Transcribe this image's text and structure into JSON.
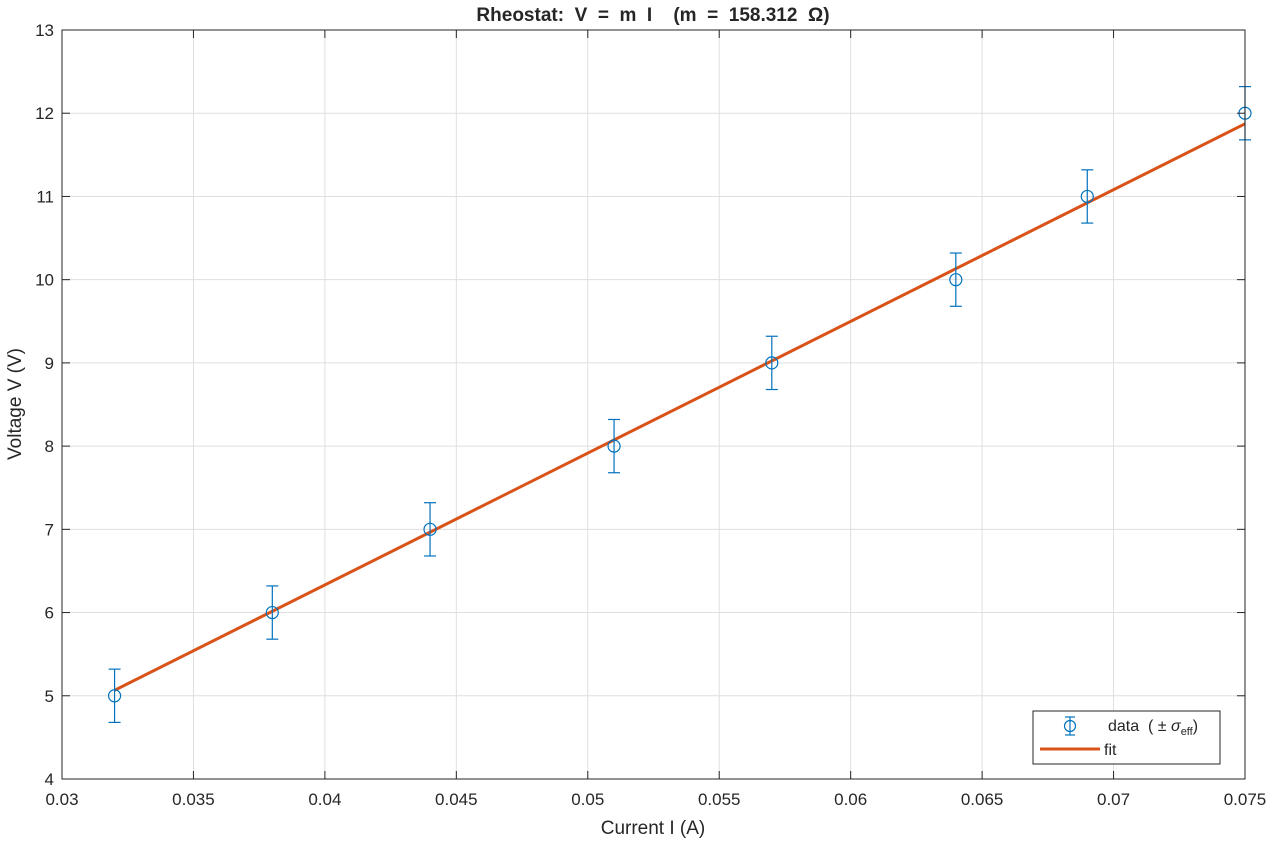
{
  "chart_data": {
    "type": "scatter",
    "title": "Rheostat:  V  =  m  I    (m  =  158.312  Ω)",
    "xlabel": "Current I (A)",
    "ylabel": "Voltage V (V)",
    "xlim": [
      0.03,
      0.075
    ],
    "ylim": [
      4,
      13
    ],
    "xticks": [
      0.03,
      0.035,
      0.04,
      0.045,
      0.05,
      0.055,
      0.06,
      0.065,
      0.07,
      0.075
    ],
    "xtick_labels": [
      "0.03",
      "0.035",
      "0.04",
      "0.045",
      "0.05",
      "0.055",
      "0.06",
      "0.065",
      "0.07",
      "0.075"
    ],
    "yticks": [
      4,
      5,
      6,
      7,
      8,
      9,
      10,
      11,
      12,
      13
    ],
    "ytick_labels": [
      "4",
      "5",
      "6",
      "7",
      "8",
      "9",
      "10",
      "11",
      "12",
      "13"
    ],
    "grid": true,
    "legend_position": "bottom-right",
    "series": [
      {
        "name": "data",
        "kind": "errorbar",
        "color": "#0072BD",
        "x": [
          0.032,
          0.038,
          0.044,
          0.051,
          0.057,
          0.064,
          0.069,
          0.075
        ],
        "y": [
          5,
          6,
          7,
          8,
          9,
          10,
          11,
          12
        ],
        "err": [
          0.32,
          0.32,
          0.32,
          0.32,
          0.32,
          0.32,
          0.32,
          0.32
        ]
      },
      {
        "name": "fit",
        "kind": "line",
        "color": "#D95319",
        "slope": 158.312,
        "x": [
          0.032,
          0.075
        ],
        "y": [
          5.066,
          11.873
        ]
      }
    ],
    "legend": {
      "data_label": "data  ( ± ",
      "sigma_symbol": "σ",
      "sigma_subscript": "eff",
      "data_label_end": ")",
      "fit_label": "fit"
    }
  }
}
